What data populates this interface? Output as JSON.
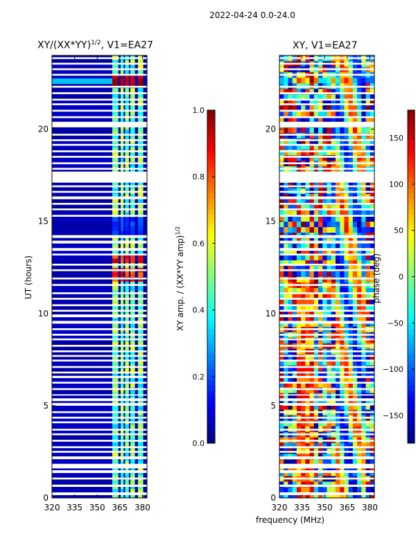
{
  "suptitle": "2022-04-24 0.0-24.0",
  "panels": [
    {
      "id": "left",
      "title": "XY/(XX*YY)",
      "title_sup": "1/2",
      "title_suffix": ", V1=EA27"
    },
    {
      "id": "right",
      "title": "XY, V1=EA27"
    }
  ],
  "y_axis_label": "UT (hours)",
  "x_axis_label": "frequency (MHz)",
  "colorbar_left_label": "XY amp. / (XX*YY amp)",
  "colorbar_left_label_sup": "1/2",
  "colorbar_right_label": "phase (deg)",
  "chart_data": [
    {
      "type": "heatmap",
      "title": "XY/(XX*YY)^1/2, V1=EA27",
      "xlabel": "",
      "ylabel": "UT (hours)",
      "xlim": [
        320,
        383
      ],
      "ylim": [
        0,
        24
      ],
      "xticks": [
        320,
        335,
        350,
        365,
        380
      ],
      "yticks": [
        0,
        5,
        10,
        15,
        20
      ],
      "colorbar": {
        "label": "XY amp. / (XX*YY amp)^1/2",
        "range": [
          0.0,
          1.0
        ],
        "ticks": [
          "0.0",
          "0.2",
          "0.4",
          "0.6",
          "0.8",
          "1.0"
        ],
        "cmap": "jet"
      },
      "bright_bands_MHz": [
        [
          360,
          364
        ],
        [
          365.5,
          367.5
        ],
        [
          368.5,
          371
        ],
        [
          372,
          375
        ],
        [
          377,
          380.5
        ]
      ],
      "peak_rows_UT": [
        22.6,
        12.9,
        12.0
      ]
    },
    {
      "type": "heatmap",
      "title": "XY, V1=EA27",
      "xlabel": "frequency (MHz)",
      "ylabel": "",
      "xlim": [
        320,
        383
      ],
      "ylim": [
        0,
        24
      ],
      "xticks": [
        320,
        335,
        350,
        365,
        380
      ],
      "yticks": [
        0,
        5,
        10,
        15,
        20
      ],
      "colorbar": {
        "label": "phase (deg)",
        "range": [
          -180,
          180
        ],
        "ticks": [
          "−150",
          "−100",
          "−50",
          "0",
          "50",
          "100",
          "150"
        ],
        "cmap": "jet"
      }
    }
  ],
  "flagged_rows_UT": [
    [
      0.15,
      0.3
    ],
    [
      0.6,
      0.72
    ],
    [
      1.0,
      1.1
    ],
    [
      1.35,
      1.5
    ],
    [
      1.6,
      1.85
    ],
    [
      2.1,
      2.25
    ],
    [
      2.45,
      2.55
    ],
    [
      2.7,
      2.8
    ],
    [
      3.05,
      3.15
    ],
    [
      3.4,
      3.5
    ],
    [
      3.65,
      3.75
    ],
    [
      4.05,
      4.15
    ],
    [
      4.3,
      4.4
    ],
    [
      4.6,
      4.7
    ],
    [
      5.0,
      5.15
    ],
    [
      5.25,
      5.4
    ],
    [
      5.55,
      5.62
    ],
    [
      5.85,
      5.95
    ],
    [
      6.2,
      6.3
    ],
    [
      6.5,
      6.62
    ],
    [
      6.75,
      6.85
    ],
    [
      7.05,
      7.15
    ],
    [
      7.4,
      7.5
    ],
    [
      7.65,
      7.75
    ],
    [
      7.9,
      8.0
    ],
    [
      8.2,
      8.3
    ],
    [
      8.55,
      8.65
    ],
    [
      8.8,
      8.9
    ],
    [
      9.1,
      9.2
    ],
    [
      9.45,
      9.6
    ],
    [
      9.8,
      9.95
    ],
    [
      10.1,
      10.2
    ],
    [
      10.4,
      10.5
    ],
    [
      10.75,
      10.85
    ],
    [
      11.05,
      11.15
    ],
    [
      11.5,
      11.6
    ],
    [
      11.85,
      11.95
    ],
    [
      12.3,
      12.4
    ],
    [
      12.6,
      12.7
    ],
    [
      13.15,
      13.25
    ],
    [
      13.4,
      13.55
    ],
    [
      13.8,
      13.95
    ],
    [
      14.1,
      14.25
    ],
    [
      15.25,
      15.35
    ],
    [
      15.6,
      15.7
    ],
    [
      15.9,
      16.0
    ],
    [
      16.2,
      16.35
    ],
    [
      16.55,
      16.65
    ],
    [
      16.85,
      16.95
    ],
    [
      17.1,
      17.7
    ],
    [
      17.8,
      17.9
    ],
    [
      18.1,
      18.2
    ],
    [
      18.45,
      18.55
    ],
    [
      18.75,
      18.85
    ],
    [
      19.1,
      19.2
    ],
    [
      19.35,
      19.45
    ],
    [
      19.65,
      19.75
    ],
    [
      20.1,
      20.4
    ],
    [
      20.6,
      20.7
    ],
    [
      20.95,
      21.05
    ],
    [
      21.3,
      21.4
    ],
    [
      21.55,
      21.65
    ],
    [
      21.9,
      22.0
    ],
    [
      22.25,
      22.35
    ],
    [
      22.9,
      23.0
    ],
    [
      23.2,
      23.3
    ],
    [
      23.5,
      23.6
    ],
    [
      23.8,
      23.9
    ]
  ]
}
